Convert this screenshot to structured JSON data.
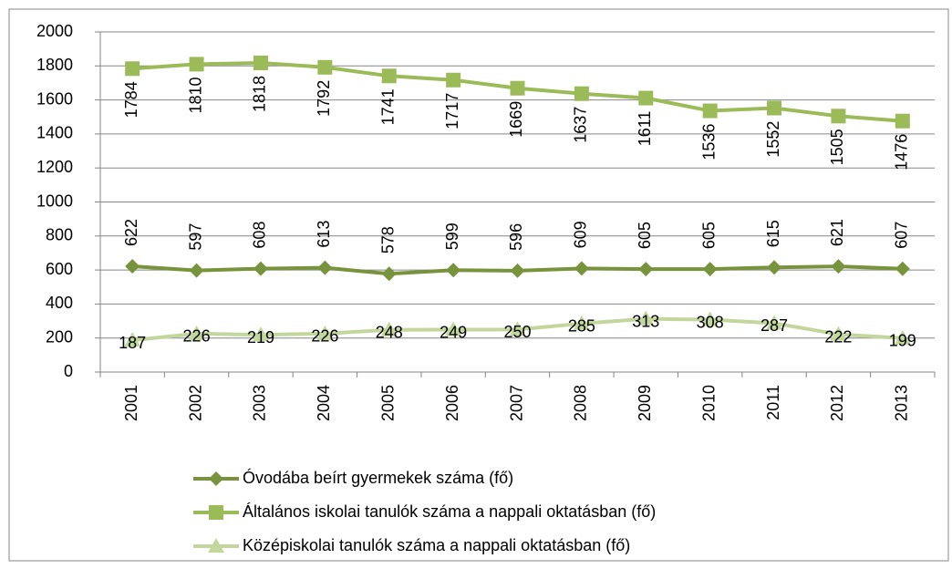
{
  "chart_data": {
    "type": "line",
    "categories": [
      "2001",
      "2002",
      "2003",
      "2004",
      "2005",
      "2006",
      "2007",
      "2008",
      "2009",
      "2010",
      "2011",
      "2012",
      "2013"
    ],
    "series": [
      {
        "name": "Óvodába beírt gyermekek száma (fő)",
        "color": "#77933c",
        "marker": "diamond",
        "values": [
          622,
          597,
          608,
          613,
          578,
          599,
          596,
          609,
          605,
          605,
          615,
          621,
          607
        ]
      },
      {
        "name": "Általános iskolai tanulók száma a nappali oktatásban (fő)",
        "color": "#9bbb59",
        "marker": "square",
        "values": [
          1784,
          1810,
          1818,
          1792,
          1741,
          1717,
          1669,
          1637,
          1611,
          1536,
          1552,
          1505,
          1476
        ]
      },
      {
        "name": "Középiskolai tanulók száma a nappali oktatásban (fő)",
        "color": "#c3d69b",
        "marker": "triangle",
        "values": [
          187,
          226,
          219,
          226,
          248,
          249,
          250,
          285,
          313,
          308,
          287,
          222,
          199
        ]
      }
    ],
    "ylim": [
      0,
      2000
    ],
    "yticks": [
      0,
      200,
      400,
      600,
      800,
      1000,
      1200,
      1400,
      1600,
      1800,
      2000
    ],
    "grid": true,
    "legend": "bottom"
  }
}
